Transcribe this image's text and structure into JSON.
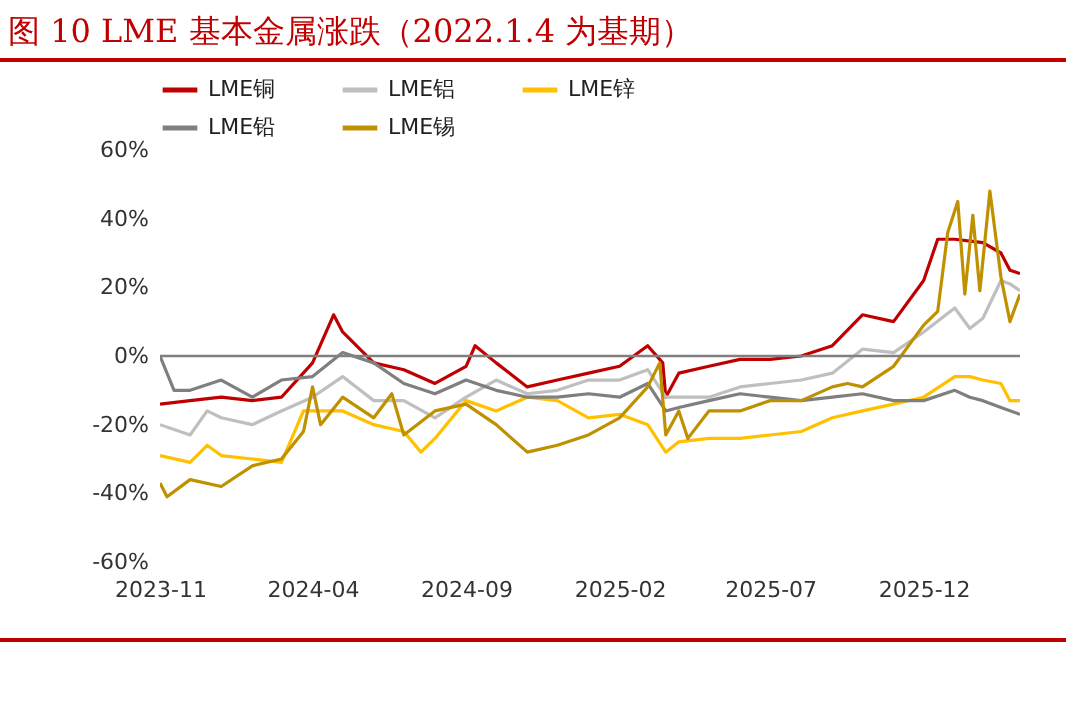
{
  "chart_data": {
    "type": "line",
    "title": "图 10 LME 基本金属涨跌（2022.1.4 为基期）",
    "legend": "top",
    "xlim": [
      "2023-11-01",
      "2026-03-07"
    ],
    "xticks": [
      "2023-11",
      "2024-04",
      "2024-09",
      "2025-02",
      "2025-07",
      "2025-12"
    ],
    "ylim": [
      -60,
      60
    ],
    "yticks": [
      {
        "value": -60,
        "label": "-60%"
      },
      {
        "value": -40,
        "label": "-40%"
      },
      {
        "value": -20,
        "label": "-20%"
      },
      {
        "value": 0,
        "label": "0%"
      },
      {
        "value": 20,
        "label": "20%"
      },
      {
        "value": 40,
        "label": "40%"
      },
      {
        "value": 60,
        "label": "60%"
      }
    ],
    "ref_lines": [
      {
        "axis": "y",
        "value": 0,
        "color": "#808080"
      }
    ],
    "series": [
      {
        "name": "LME铜",
        "color": "#c00000",
        "x": [
          "2023-11-01",
          "2023-12-01",
          "2024-01-01",
          "2024-02-01",
          "2024-03-01",
          "2024-04-01",
          "2024-04-22",
          "2024-05-01",
          "2024-06-01",
          "2024-07-01",
          "2024-08-01",
          "2024-09-01",
          "2024-09-10",
          "2024-10-01",
          "2024-11-01",
          "2024-12-01",
          "2025-01-01",
          "2025-02-01",
          "2025-03-01",
          "2025-03-16",
          "2025-03-19",
          "2025-04-01",
          "2025-05-01",
          "2025-06-01",
          "2025-07-01",
          "2025-08-01",
          "2025-09-01",
          "2025-10-01",
          "2025-11-01",
          "2025-12-01",
          "2025-12-15",
          "2026-01-01",
          "2026-01-29",
          "2026-02-16",
          "2026-02-25",
          "2026-03-07"
        ],
        "values": [
          -14,
          -13,
          -12,
          -13,
          -12,
          -2,
          12,
          7,
          -2,
          -4,
          -8,
          -3,
          3,
          -2,
          -9,
          -7,
          -5,
          -3,
          3,
          -2,
          -12,
          -5,
          -3,
          -1,
          -1,
          0,
          3,
          12,
          10,
          22,
          34,
          34,
          33,
          30,
          25,
          24
        ]
      },
      {
        "name": "LME铝",
        "color": "#bfbfbf",
        "x": [
          "2023-11-01",
          "2023-12-01",
          "2023-12-18",
          "2024-01-01",
          "2024-02-01",
          "2024-03-01",
          "2024-04-01",
          "2024-05-01",
          "2024-06-01",
          "2024-07-01",
          "2024-08-01",
          "2024-09-01",
          "2024-10-01",
          "2024-11-01",
          "2024-12-01",
          "2025-01-01",
          "2025-02-01",
          "2025-03-01",
          "2025-03-19",
          "2025-04-01",
          "2025-05-01",
          "2025-06-01",
          "2025-07-01",
          "2025-08-01",
          "2025-09-01",
          "2025-10-01",
          "2025-11-01",
          "2025-12-01",
          "2026-01-01",
          "2026-01-16",
          "2026-01-29",
          "2026-02-16",
          "2026-02-25",
          "2026-03-07"
        ],
        "values": [
          -20,
          -23,
          -16,
          -18,
          -20,
          -16,
          -12,
          -6,
          -13,
          -13,
          -18,
          -12,
          -7,
          -11,
          -10,
          -7,
          -7,
          -4,
          -12,
          -12,
          -12,
          -9,
          -8,
          -7,
          -5,
          2,
          1,
          7,
          14,
          8,
          11,
          22,
          21,
          19
        ]
      },
      {
        "name": "LME锌",
        "color": "#ffc000",
        "x": [
          "2023-11-01",
          "2023-12-01",
          "2023-12-18",
          "2024-01-01",
          "2024-02-01",
          "2024-03-01",
          "2024-03-23",
          "2024-05-01",
          "2024-06-01",
          "2024-07-01",
          "2024-07-18",
          "2024-08-01",
          "2024-09-01",
          "2024-10-01",
          "2024-11-01",
          "2024-12-01",
          "2025-01-01",
          "2025-02-01",
          "2025-03-01",
          "2025-03-19",
          "2025-04-01",
          "2025-05-01",
          "2025-06-01",
          "2025-07-01",
          "2025-08-01",
          "2025-09-01",
          "2025-10-01",
          "2025-11-01",
          "2025-12-01",
          "2026-01-01",
          "2026-01-16",
          "2026-01-29",
          "2026-02-16",
          "2026-02-25",
          "2026-03-07"
        ],
        "values": [
          -29,
          -31,
          -26,
          -29,
          -30,
          -31,
          -16,
          -16,
          -20,
          -22,
          -28,
          -24,
          -13,
          -16,
          -12,
          -13,
          -18,
          -17,
          -20,
          -28,
          -25,
          -24,
          -24,
          -23,
          -22,
          -18,
          -16,
          -14,
          -12,
          -6,
          -6,
          -7,
          -8,
          -13,
          -13
        ]
      },
      {
        "name": "LME铅",
        "color": "#7f7f7f",
        "x": [
          "2023-11-01",
          "2023-11-15",
          "2023-12-01",
          "2024-01-01",
          "2024-02-01",
          "2024-03-01",
          "2024-04-01",
          "2024-05-01",
          "2024-06-01",
          "2024-07-01",
          "2024-08-01",
          "2024-09-01",
          "2024-10-01",
          "2024-11-01",
          "2024-12-01",
          "2025-01-01",
          "2025-02-01",
          "2025-03-01",
          "2025-03-19",
          "2025-04-01",
          "2025-05-01",
          "2025-06-01",
          "2025-07-01",
          "2025-08-01",
          "2025-09-01",
          "2025-10-01",
          "2025-11-01",
          "2025-12-01",
          "2026-01-01",
          "2026-01-16",
          "2026-01-29",
          "2026-02-16",
          "2026-03-07"
        ],
        "values": [
          0,
          -10,
          -10,
          -7,
          -12,
          -7,
          -6,
          1,
          -2,
          -8,
          -11,
          -7,
          -10,
          -12,
          -12,
          -11,
          -12,
          -8,
          -16,
          -15,
          -13,
          -11,
          -12,
          -13,
          -12,
          -11,
          -13,
          -13,
          -10,
          -12,
          -13,
          -15,
          -17
        ]
      },
      {
        "name": "LME锡",
        "color": "#bf9000",
        "x": [
          "2023-11-01",
          "2023-11-08",
          "2023-12-01",
          "2024-01-01",
          "2024-02-01",
          "2024-03-01",
          "2024-03-23",
          "2024-04-01",
          "2024-04-09",
          "2024-05-01",
          "2024-06-01",
          "2024-06-19",
          "2024-07-01",
          "2024-08-01",
          "2024-09-01",
          "2024-10-01",
          "2024-11-01",
          "2024-12-01",
          "2025-01-01",
          "2025-02-01",
          "2025-03-01",
          "2025-03-13",
          "2025-03-19",
          "2025-04-01",
          "2025-04-10",
          "2025-05-01",
          "2025-06-01",
          "2025-07-01",
          "2025-08-01",
          "2025-09-01",
          "2025-09-16",
          "2025-10-01",
          "2025-11-01",
          "2025-12-01",
          "2025-12-15",
          "2025-12-25",
          "2026-01-04",
          "2026-01-11",
          "2026-01-19",
          "2026-01-26",
          "2026-02-05",
          "2026-02-16",
          "2026-02-25",
          "2026-03-07"
        ],
        "values": [
          -37,
          -41,
          -36,
          -38,
          -32,
          -30,
          -22,
          -9,
          -20,
          -12,
          -18,
          -11,
          -23,
          -16,
          -14,
          -20,
          -28,
          -26,
          -23,
          -18,
          -9,
          -2,
          -23,
          -16,
          -24,
          -16,
          -16,
          -13,
          -13,
          -9,
          -8,
          -9,
          -3,
          9,
          13,
          36,
          45,
          18,
          41,
          19,
          48,
          23,
          10,
          18
        ]
      }
    ]
  }
}
